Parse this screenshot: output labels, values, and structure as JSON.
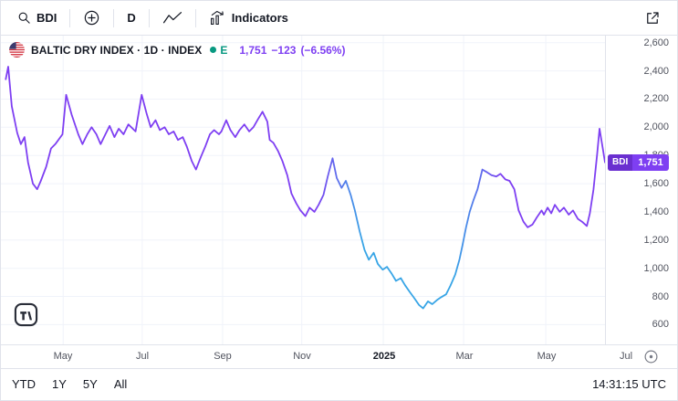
{
  "toolbar": {
    "symbol": "BDI",
    "interval": "D",
    "indicators_label": "Indicators"
  },
  "legend": {
    "title": "BALTIC DRY INDEX · 1D · INDEX",
    "market_status": "E",
    "price": "1,751",
    "change": "−123",
    "change_pct": "(−6.56%)"
  },
  "price_label": {
    "symbol": "BDI",
    "value": "1,751"
  },
  "footer": {
    "range_ytd": "YTD",
    "range_1y": "1Y",
    "range_5y": "5Y",
    "range_all": "All",
    "clock": "14:31:15 UTC"
  },
  "colors": {
    "purple": "#7e3ff2",
    "purple_dark": "#6a2fd0",
    "blue": "#38a5e6",
    "green": "#089981",
    "grid": "#f0f3fa",
    "border": "#e0e3eb",
    "text": "#131722",
    "axis_text": "#50535e"
  },
  "chart_data": {
    "type": "line",
    "title": "Baltic Dry Index (BDI) · 1D · INDEX",
    "last_value": 1751,
    "ylim": [
      460,
      2650
    ],
    "y_ticks": [
      600,
      800,
      1000,
      1200,
      1400,
      1600,
      1800,
      2000,
      2200,
      2400,
      2600
    ],
    "x_ticks": [
      {
        "label": "May",
        "t": 0.103
      },
      {
        "label": "Jul",
        "t": 0.234
      },
      {
        "label": "Sep",
        "t": 0.367
      },
      {
        "label": "Nov",
        "t": 0.498
      },
      {
        "label": "2025",
        "t": 0.633
      },
      {
        "label": "Mar",
        "t": 0.766
      },
      {
        "label": "May",
        "t": 0.902
      },
      {
        "label": "Jul",
        "t": 1.033
      }
    ],
    "gradient_stops": [
      {
        "t": 0.0,
        "color": "purple"
      },
      {
        "t": 0.52,
        "color": "purple"
      },
      {
        "t": 0.6,
        "color": "blue"
      },
      {
        "t": 0.75,
        "color": "blue"
      },
      {
        "t": 0.83,
        "color": "purple"
      },
      {
        "t": 1.0,
        "color": "purple"
      }
    ],
    "points": [
      [
        0.008,
        2340
      ],
      [
        0.012,
        2430
      ],
      [
        0.018,
        2150
      ],
      [
        0.027,
        1960
      ],
      [
        0.033,
        1880
      ],
      [
        0.039,
        1930
      ],
      [
        0.045,
        1750
      ],
      [
        0.053,
        1600
      ],
      [
        0.06,
        1560
      ],
      [
        0.066,
        1620
      ],
      [
        0.075,
        1720
      ],
      [
        0.083,
        1850
      ],
      [
        0.09,
        1880
      ],
      [
        0.102,
        1950
      ],
      [
        0.108,
        2230
      ],
      [
        0.117,
        2090
      ],
      [
        0.128,
        1950
      ],
      [
        0.135,
        1880
      ],
      [
        0.143,
        1950
      ],
      [
        0.15,
        2000
      ],
      [
        0.158,
        1950
      ],
      [
        0.165,
        1880
      ],
      [
        0.173,
        1950
      ],
      [
        0.18,
        2010
      ],
      [
        0.188,
        1930
      ],
      [
        0.195,
        1990
      ],
      [
        0.203,
        1950
      ],
      [
        0.211,
        2020
      ],
      [
        0.223,
        1970
      ],
      [
        0.233,
        2230
      ],
      [
        0.241,
        2100
      ],
      [
        0.248,
        2000
      ],
      [
        0.256,
        2050
      ],
      [
        0.263,
        1980
      ],
      [
        0.271,
        2000
      ],
      [
        0.278,
        1950
      ],
      [
        0.286,
        1970
      ],
      [
        0.293,
        1910
      ],
      [
        0.301,
        1930
      ],
      [
        0.308,
        1860
      ],
      [
        0.316,
        1760
      ],
      [
        0.323,
        1700
      ],
      [
        0.331,
        1790
      ],
      [
        0.338,
        1860
      ],
      [
        0.346,
        1950
      ],
      [
        0.353,
        1980
      ],
      [
        0.361,
        1950
      ],
      [
        0.365,
        1970
      ],
      [
        0.373,
        2050
      ],
      [
        0.38,
        1980
      ],
      [
        0.388,
        1930
      ],
      [
        0.395,
        1980
      ],
      [
        0.403,
        2020
      ],
      [
        0.411,
        1970
      ],
      [
        0.418,
        2000
      ],
      [
        0.426,
        2060
      ],
      [
        0.433,
        2110
      ],
      [
        0.441,
        2040
      ],
      [
        0.445,
        1910
      ],
      [
        0.451,
        1890
      ],
      [
        0.459,
        1830
      ],
      [
        0.466,
        1760
      ],
      [
        0.474,
        1660
      ],
      [
        0.481,
        1530
      ],
      [
        0.489,
        1460
      ],
      [
        0.496,
        1410
      ],
      [
        0.504,
        1370
      ],
      [
        0.511,
        1430
      ],
      [
        0.519,
        1400
      ],
      [
        0.526,
        1450
      ],
      [
        0.534,
        1520
      ],
      [
        0.541,
        1650
      ],
      [
        0.549,
        1780
      ],
      [
        0.556,
        1640
      ],
      [
        0.564,
        1570
      ],
      [
        0.571,
        1620
      ],
      [
        0.579,
        1520
      ],
      [
        0.586,
        1410
      ],
      [
        0.594,
        1260
      ],
      [
        0.602,
        1130
      ],
      [
        0.609,
        1060
      ],
      [
        0.617,
        1110
      ],
      [
        0.624,
        1030
      ],
      [
        0.632,
        990
      ],
      [
        0.639,
        1010
      ],
      [
        0.647,
        960
      ],
      [
        0.654,
        910
      ],
      [
        0.662,
        930
      ],
      [
        0.669,
        880
      ],
      [
        0.677,
        830
      ],
      [
        0.684,
        790
      ],
      [
        0.692,
        740
      ],
      [
        0.699,
        715
      ],
      [
        0.707,
        765
      ],
      [
        0.714,
        745
      ],
      [
        0.722,
        775
      ],
      [
        0.729,
        795
      ],
      [
        0.737,
        815
      ],
      [
        0.744,
        875
      ],
      [
        0.752,
        955
      ],
      [
        0.759,
        1060
      ],
      [
        0.764,
        1160
      ],
      [
        0.77,
        1290
      ],
      [
        0.776,
        1400
      ],
      [
        0.782,
        1480
      ],
      [
        0.789,
        1560
      ],
      [
        0.797,
        1700
      ],
      [
        0.805,
        1680
      ],
      [
        0.812,
        1660
      ],
      [
        0.82,
        1650
      ],
      [
        0.827,
        1670
      ],
      [
        0.835,
        1630
      ],
      [
        0.842,
        1620
      ],
      [
        0.85,
        1560
      ],
      [
        0.857,
        1410
      ],
      [
        0.865,
        1330
      ],
      [
        0.872,
        1290
      ],
      [
        0.88,
        1310
      ],
      [
        0.887,
        1360
      ],
      [
        0.895,
        1410
      ],
      [
        0.899,
        1380
      ],
      [
        0.905,
        1430
      ],
      [
        0.911,
        1390
      ],
      [
        0.917,
        1450
      ],
      [
        0.925,
        1400
      ],
      [
        0.932,
        1430
      ],
      [
        0.94,
        1380
      ],
      [
        0.947,
        1410
      ],
      [
        0.955,
        1350
      ],
      [
        0.962,
        1330
      ],
      [
        0.97,
        1300
      ],
      [
        0.975,
        1390
      ],
      [
        0.981,
        1560
      ],
      [
        0.987,
        1810
      ],
      [
        0.991,
        1990
      ],
      [
        0.996,
        1860
      ],
      [
        1.0,
        1751
      ]
    ]
  }
}
